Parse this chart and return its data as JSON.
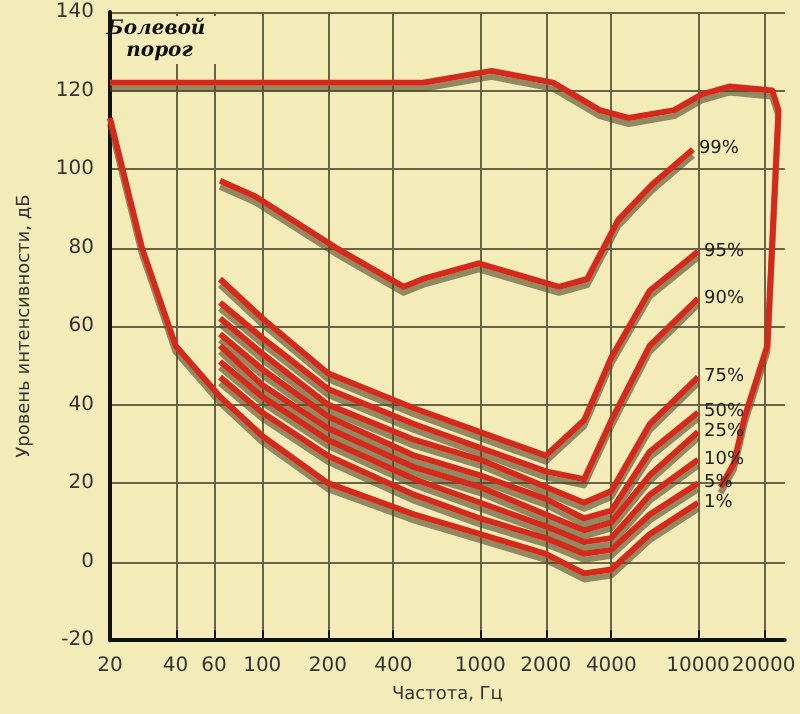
{
  "chart_data": {
    "type": "line",
    "xlabel": "Частота, Гц",
    "ylabel": "Уровень интенсивности, дБ",
    "log": "x",
    "grid": true,
    "legend": false,
    "marker": "none",
    "line_style": "solid",
    "xlim": [
      20,
      25000
    ],
    "xticks": [
      20,
      40,
      60,
      100,
      200,
      400,
      1000,
      2000,
      4000,
      10000,
      20000
    ],
    "ylim": [
      -20,
      140
    ],
    "yticks": [
      -20,
      0,
      20,
      40,
      60,
      80,
      100,
      120,
      140
    ],
    "annotations": [
      "Болевой порог"
    ],
    "series": [
      {
        "color": "#d42a1e",
        "x": [
          20,
          76,
          546,
          1130,
          2160,
          3540,
          4800,
          7780,
          10400,
          13900,
          21900,
          23400,
          20800,
          16400,
          14600,
          12700
        ],
        "values": [
          122,
          122,
          122,
          125,
          122,
          115,
          113,
          115,
          119,
          121,
          120,
          115,
          55,
          37,
          25,
          19
        ]
      },
      {
        "name": "99%",
        "color": "#d42a1e",
        "x": [
          64,
          93,
          217,
          446,
          546,
          985,
          2300,
          3100,
          4300,
          6140,
          9470
        ],
        "values": [
          97,
          93,
          80,
          70,
          72,
          76,
          70,
          72,
          87,
          96,
          105
        ]
      },
      {
        "name": "95%",
        "color": "#d42a1e",
        "x": [
          64,
          100,
          200,
          500,
          1000,
          2000,
          3000,
          4000,
          6000,
          10000
        ],
        "values": [
          72,
          62,
          48,
          39,
          33,
          27,
          36,
          52,
          69,
          79
        ]
      },
      {
        "name": "90%",
        "color": "#d42a1e",
        "x": [
          64,
          100,
          200,
          500,
          1000,
          2000,
          3000,
          4000,
          6000,
          10000
        ],
        "values": [
          66,
          57,
          44,
          35,
          29,
          23,
          21,
          36,
          55,
          67
        ]
      },
      {
        "name": "75%",
        "color": "#d42a1e",
        "x": [
          64,
          100,
          200,
          500,
          1000,
          2000,
          3000,
          4000,
          6000,
          10000
        ],
        "values": [
          62,
          53,
          40,
          31,
          26,
          19,
          15,
          18,
          35,
          47
        ]
      },
      {
        "name": "50%",
        "color": "#d42a1e",
        "x": [
          64,
          100,
          200,
          500,
          1000,
          2000,
          3000,
          4000,
          6000,
          10000
        ],
        "values": [
          58,
          49,
          37,
          27,
          22,
          16,
          11,
          13,
          28,
          38
        ]
      },
      {
        "name": "25%",
        "color": "#d42a1e",
        "x": [
          64,
          100,
          200,
          500,
          1000,
          2000,
          3000,
          4000,
          6000,
          10000
        ],
        "values": [
          55,
          45,
          34,
          24,
          19,
          12,
          8,
          10,
          22,
          33
        ]
      },
      {
        "name": "10%",
        "color": "#d42a1e",
        "x": [
          64,
          100,
          200,
          500,
          1000,
          2000,
          3000,
          4000,
          6000,
          10000
        ],
        "values": [
          51,
          42,
          31,
          21,
          15,
          9,
          5,
          6,
          17,
          26
        ]
      },
      {
        "name": "5%",
        "color": "#d42a1e",
        "x": [
          64,
          100,
          200,
          500,
          1000,
          2000,
          3000,
          4000,
          6000,
          10000
        ],
        "values": [
          47,
          38,
          27,
          17,
          11,
          6,
          2,
          3,
          12,
          20
        ]
      },
      {
        "name": "1%",
        "color": "#d42a1e",
        "x": [
          20,
          28,
          40,
          64,
          100,
          200,
          500,
          1000,
          2000,
          3000,
          4000,
          6000,
          10000
        ],
        "values": [
          113,
          80,
          55,
          42,
          32,
          20,
          12,
          7,
          2,
          -3,
          -2,
          7,
          15
        ]
      }
    ]
  }
}
